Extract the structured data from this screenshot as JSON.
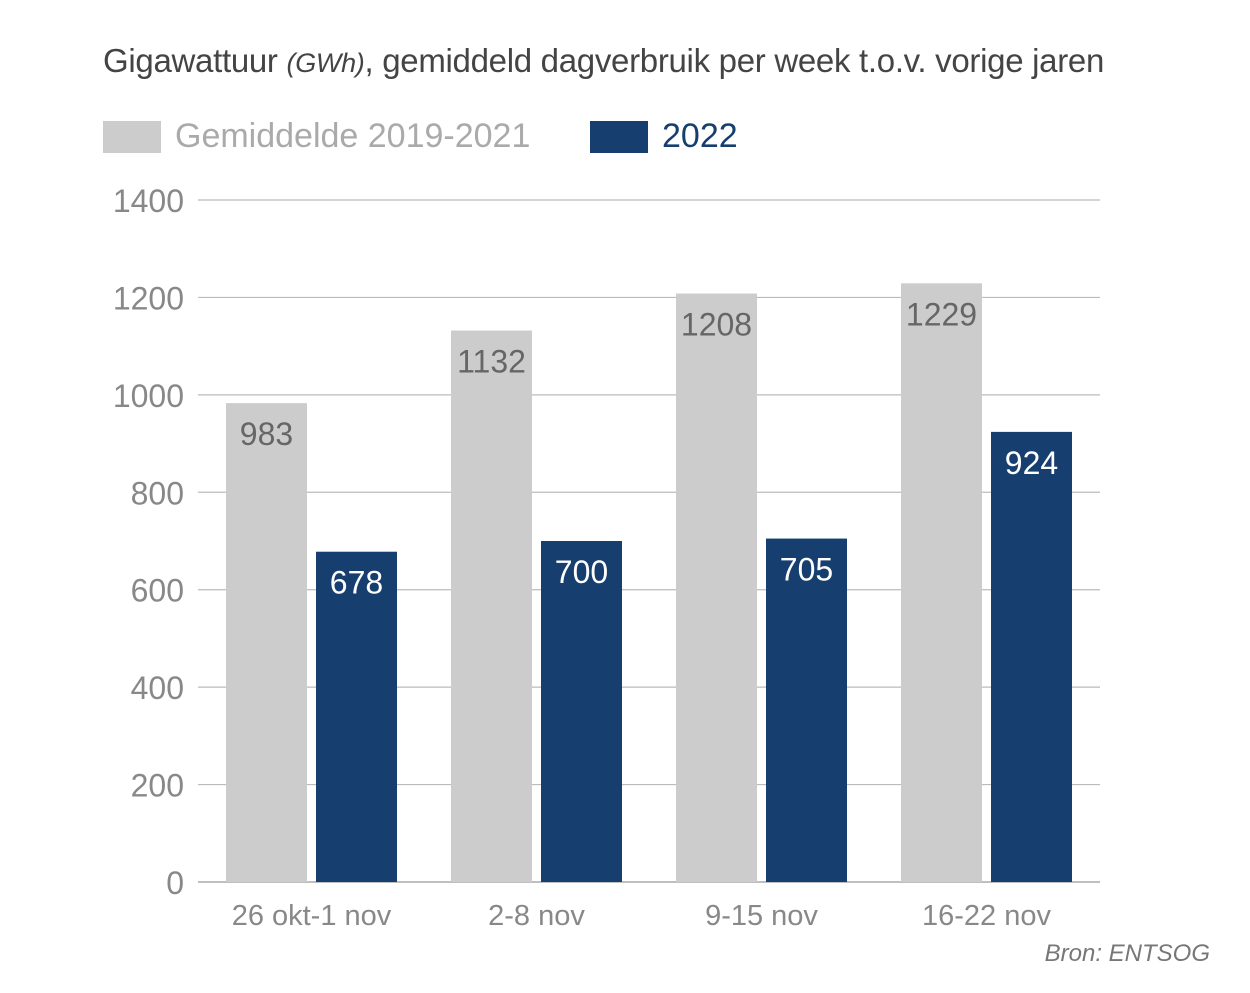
{
  "chart_data": {
    "type": "bar",
    "title": "Gigawattuur",
    "title_unit": "(GWh)",
    "title_rest": ", gemiddeld dagverbruik per week t.o.v. vorige jaren",
    "categories": [
      "26 okt-1 nov",
      "2-8 nov",
      "9-15 nov",
      "16-22 nov"
    ],
    "series": [
      {
        "name": "Gemiddelde 2019-2021",
        "color": "#cccccc",
        "label_color": "#666666",
        "values": [
          983,
          1132,
          1208,
          1229
        ]
      },
      {
        "name": "2022",
        "color": "#163f6f",
        "label_color": "#ffffff",
        "values": [
          678,
          700,
          705,
          924
        ]
      }
    ],
    "ylim": [
      0,
      1400
    ],
    "yticks": [
      0,
      200,
      400,
      600,
      800,
      1000,
      1200,
      1400
    ],
    "grid": true,
    "legend_position": "top-left",
    "source": "Bron: ENTSOG"
  }
}
